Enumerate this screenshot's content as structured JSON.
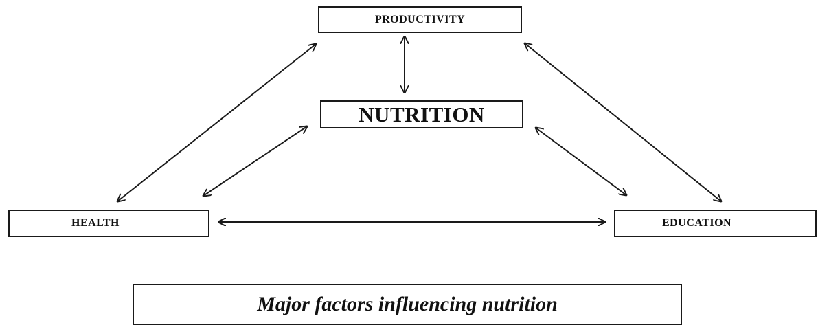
{
  "nodes": {
    "productivity": "PRODUCTIVITY",
    "nutrition": "NUTRITION",
    "health": "HEALTH",
    "education": "EDUCATION"
  },
  "caption": "Major factors influencing nutrition",
  "connections": [
    {
      "from": "productivity",
      "to": "nutrition",
      "type": "bidirectional"
    },
    {
      "from": "productivity",
      "to": "health",
      "type": "bidirectional"
    },
    {
      "from": "productivity",
      "to": "education",
      "type": "bidirectional"
    },
    {
      "from": "nutrition",
      "to": "health",
      "type": "bidirectional"
    },
    {
      "from": "nutrition",
      "to": "education",
      "type": "bidirectional"
    },
    {
      "from": "health",
      "to": "education",
      "type": "bidirectional"
    }
  ],
  "colors": {
    "line": "#1a1a1a",
    "text": "#111111",
    "background": "#ffffff"
  }
}
